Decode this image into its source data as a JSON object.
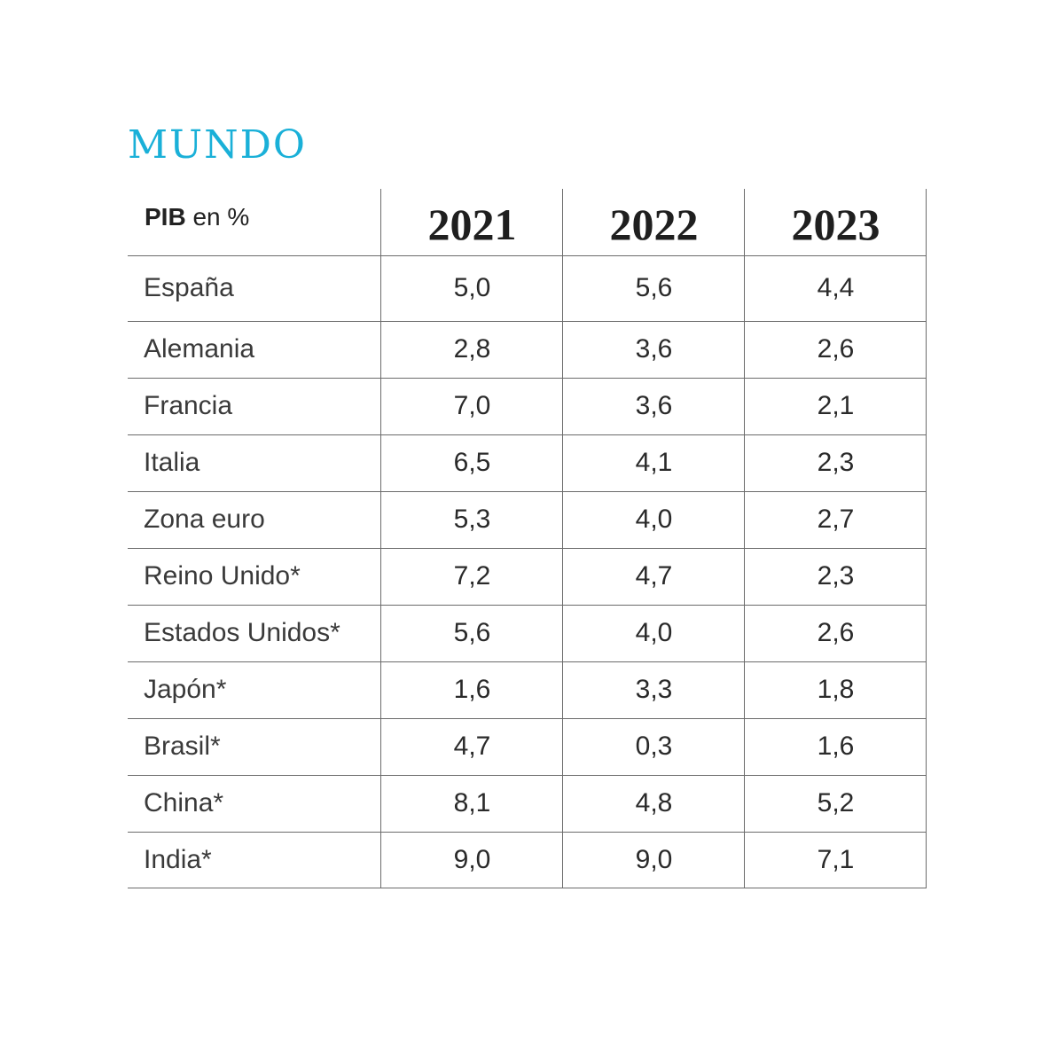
{
  "title": "MUNDO",
  "header": {
    "unit_bold": "PIB",
    "unit_rest": " en %",
    "years": [
      "2021",
      "2022",
      "2023"
    ]
  },
  "chart_data": {
    "type": "table",
    "title": "MUNDO",
    "columns": [
      "PIB en %",
      "2021",
      "2022",
      "2023"
    ],
    "rows": [
      {
        "country": "España",
        "values": [
          "5,0",
          "5,6",
          "4,4"
        ]
      },
      {
        "country": "Alemania",
        "values": [
          "2,8",
          "3,6",
          "2,6"
        ]
      },
      {
        "country": "Francia",
        "values": [
          "7,0",
          "3,6",
          "2,1"
        ]
      },
      {
        "country": "Italia",
        "values": [
          "6,5",
          "4,1",
          "2,3"
        ]
      },
      {
        "country": "Zona euro",
        "values": [
          "5,3",
          "4,0",
          "2,7"
        ]
      },
      {
        "country": "Reino Unido*",
        "values": [
          "7,2",
          "4,7",
          "2,3"
        ]
      },
      {
        "country": "Estados Unidos*",
        "values": [
          "5,6",
          "4,0",
          "2,6"
        ]
      },
      {
        "country": "Japón*",
        "values": [
          "1,6",
          "3,3",
          "1,8"
        ]
      },
      {
        "country": "Brasil*",
        "values": [
          "4,7",
          "0,3",
          "1,6"
        ]
      },
      {
        "country": "China*",
        "values": [
          "8,1",
          "4,8",
          "5,2"
        ]
      },
      {
        "country": "India*",
        "values": [
          "9,0",
          "9,0",
          "7,1"
        ]
      }
    ]
  }
}
